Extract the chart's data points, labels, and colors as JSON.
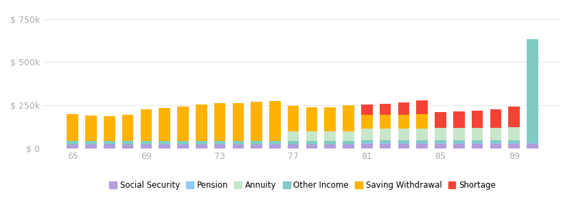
{
  "ages": [
    65,
    66,
    67,
    68,
    69,
    70,
    71,
    72,
    73,
    74,
    75,
    76,
    77,
    78,
    79,
    80,
    81,
    82,
    83,
    84,
    85,
    86,
    87,
    88,
    89,
    90
  ],
  "social_security": [
    25000,
    25000,
    25000,
    25000,
    25000,
    25000,
    25000,
    25000,
    25000,
    25000,
    25000,
    25000,
    25000,
    25000,
    25000,
    25000,
    30000,
    30000,
    30000,
    30000,
    30000,
    30000,
    30000,
    30000,
    30000,
    30000
  ],
  "pension": [
    2000,
    2000,
    2000,
    2000,
    2000,
    2000,
    2000,
    2000,
    2000,
    2000,
    2000,
    2000,
    2000,
    2000,
    2000,
    2000,
    2000,
    2000,
    2000,
    2000,
    2000,
    2000,
    2000,
    2000,
    2000,
    2000
  ],
  "other_income": [
    18000,
    18000,
    18000,
    18000,
    18000,
    18000,
    18000,
    18000,
    18000,
    18000,
    18000,
    18000,
    18000,
    18000,
    18000,
    18000,
    18000,
    18000,
    18000,
    18000,
    18000,
    18000,
    18000,
    18000,
    18000,
    600000
  ],
  "annuity": [
    0,
    0,
    0,
    0,
    0,
    0,
    0,
    0,
    0,
    0,
    0,
    0,
    55000,
    55000,
    55000,
    55000,
    65000,
    65000,
    65000,
    65000,
    70000,
    70000,
    70000,
    70000,
    75000,
    0
  ],
  "saving_withdrawal": [
    155000,
    148000,
    142000,
    150000,
    182000,
    192000,
    200000,
    212000,
    220000,
    218000,
    228000,
    230000,
    148000,
    140000,
    140000,
    152000,
    80000,
    80000,
    80000,
    85000,
    0,
    0,
    0,
    0,
    0,
    0
  ],
  "shortage": [
    0,
    0,
    0,
    0,
    0,
    0,
    0,
    0,
    0,
    0,
    0,
    0,
    0,
    0,
    0,
    0,
    60000,
    65000,
    72000,
    78000,
    90000,
    95000,
    100000,
    108000,
    118000,
    0
  ],
  "colors": {
    "social_security": "#b39ddb",
    "pension": "#90caf9",
    "other_income": "#80cbc4",
    "annuity": "#c8e6c9",
    "saving_withdrawal": "#ffb300",
    "shortage": "#f44336"
  },
  "legend_labels": [
    "Social Security",
    "Pension",
    "Annuity",
    "Other Income",
    "Saving Withdrawal",
    "Shortage"
  ],
  "yticks": [
    0,
    250000,
    500000,
    750000
  ],
  "ytick_labels": [
    "$ 0",
    "$ 250k",
    "$ 500k",
    "$ 750k"
  ],
  "xtick_positions": [
    65,
    69,
    73,
    77,
    81,
    85,
    89
  ],
  "ylim": [
    0,
    800000
  ],
  "background_color": "#ffffff",
  "grid_color": "#e8e8e8",
  "tick_color": "#aaaaaa"
}
